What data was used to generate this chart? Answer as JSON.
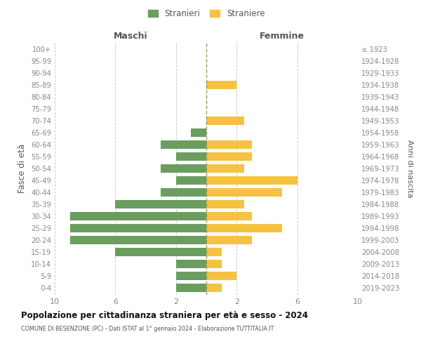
{
  "age_groups": [
    "0-4",
    "5-9",
    "10-14",
    "15-19",
    "20-24",
    "25-29",
    "30-34",
    "35-39",
    "40-44",
    "45-49",
    "50-54",
    "55-59",
    "60-64",
    "65-69",
    "70-74",
    "75-79",
    "80-84",
    "85-89",
    "90-94",
    "95-99",
    "100+"
  ],
  "birth_years": [
    "2019-2023",
    "2014-2018",
    "2009-2013",
    "2004-2008",
    "1999-2003",
    "1994-1998",
    "1989-1993",
    "1984-1988",
    "1979-1983",
    "1974-1978",
    "1969-1973",
    "1964-1968",
    "1959-1963",
    "1954-1958",
    "1949-1953",
    "1944-1948",
    "1939-1943",
    "1934-1938",
    "1929-1933",
    "1924-1928",
    "≤ 1923"
  ],
  "males": [
    2,
    2,
    2,
    6,
    9,
    9,
    9,
    6,
    3,
    2,
    3,
    2,
    3,
    1,
    0,
    0,
    0,
    0,
    0,
    0,
    0
  ],
  "females": [
    1,
    2,
    1,
    1,
    3,
    5,
    3,
    2.5,
    5,
    6,
    2.5,
    3,
    3,
    0,
    2.5,
    0,
    0,
    2,
    0,
    0,
    0
  ],
  "male_color": "#6a9e5f",
  "female_color": "#f5c242",
  "title_main": "Popolazione per cittadinanza straniera per età e sesso - 2024",
  "title_sub": "COMUNE DI BESENZONE (PC) - Dati ISTAT al 1° gennaio 2024 - Elaborazione TUTTITALIA.IT",
  "xlabel_left": "Maschi",
  "xlabel_right": "Femmine",
  "ylabel_left": "Fasce di età",
  "ylabel_right": "Anni di nascita",
  "legend_male": "Stranieri",
  "legend_female": "Straniere",
  "xlim": 10,
  "bg_color": "#ffffff",
  "grid_color": "#cccccc",
  "dashed_line_color": "#999966",
  "bar_height": 0.72,
  "tick_color": "#888888",
  "label_color": "#555555"
}
